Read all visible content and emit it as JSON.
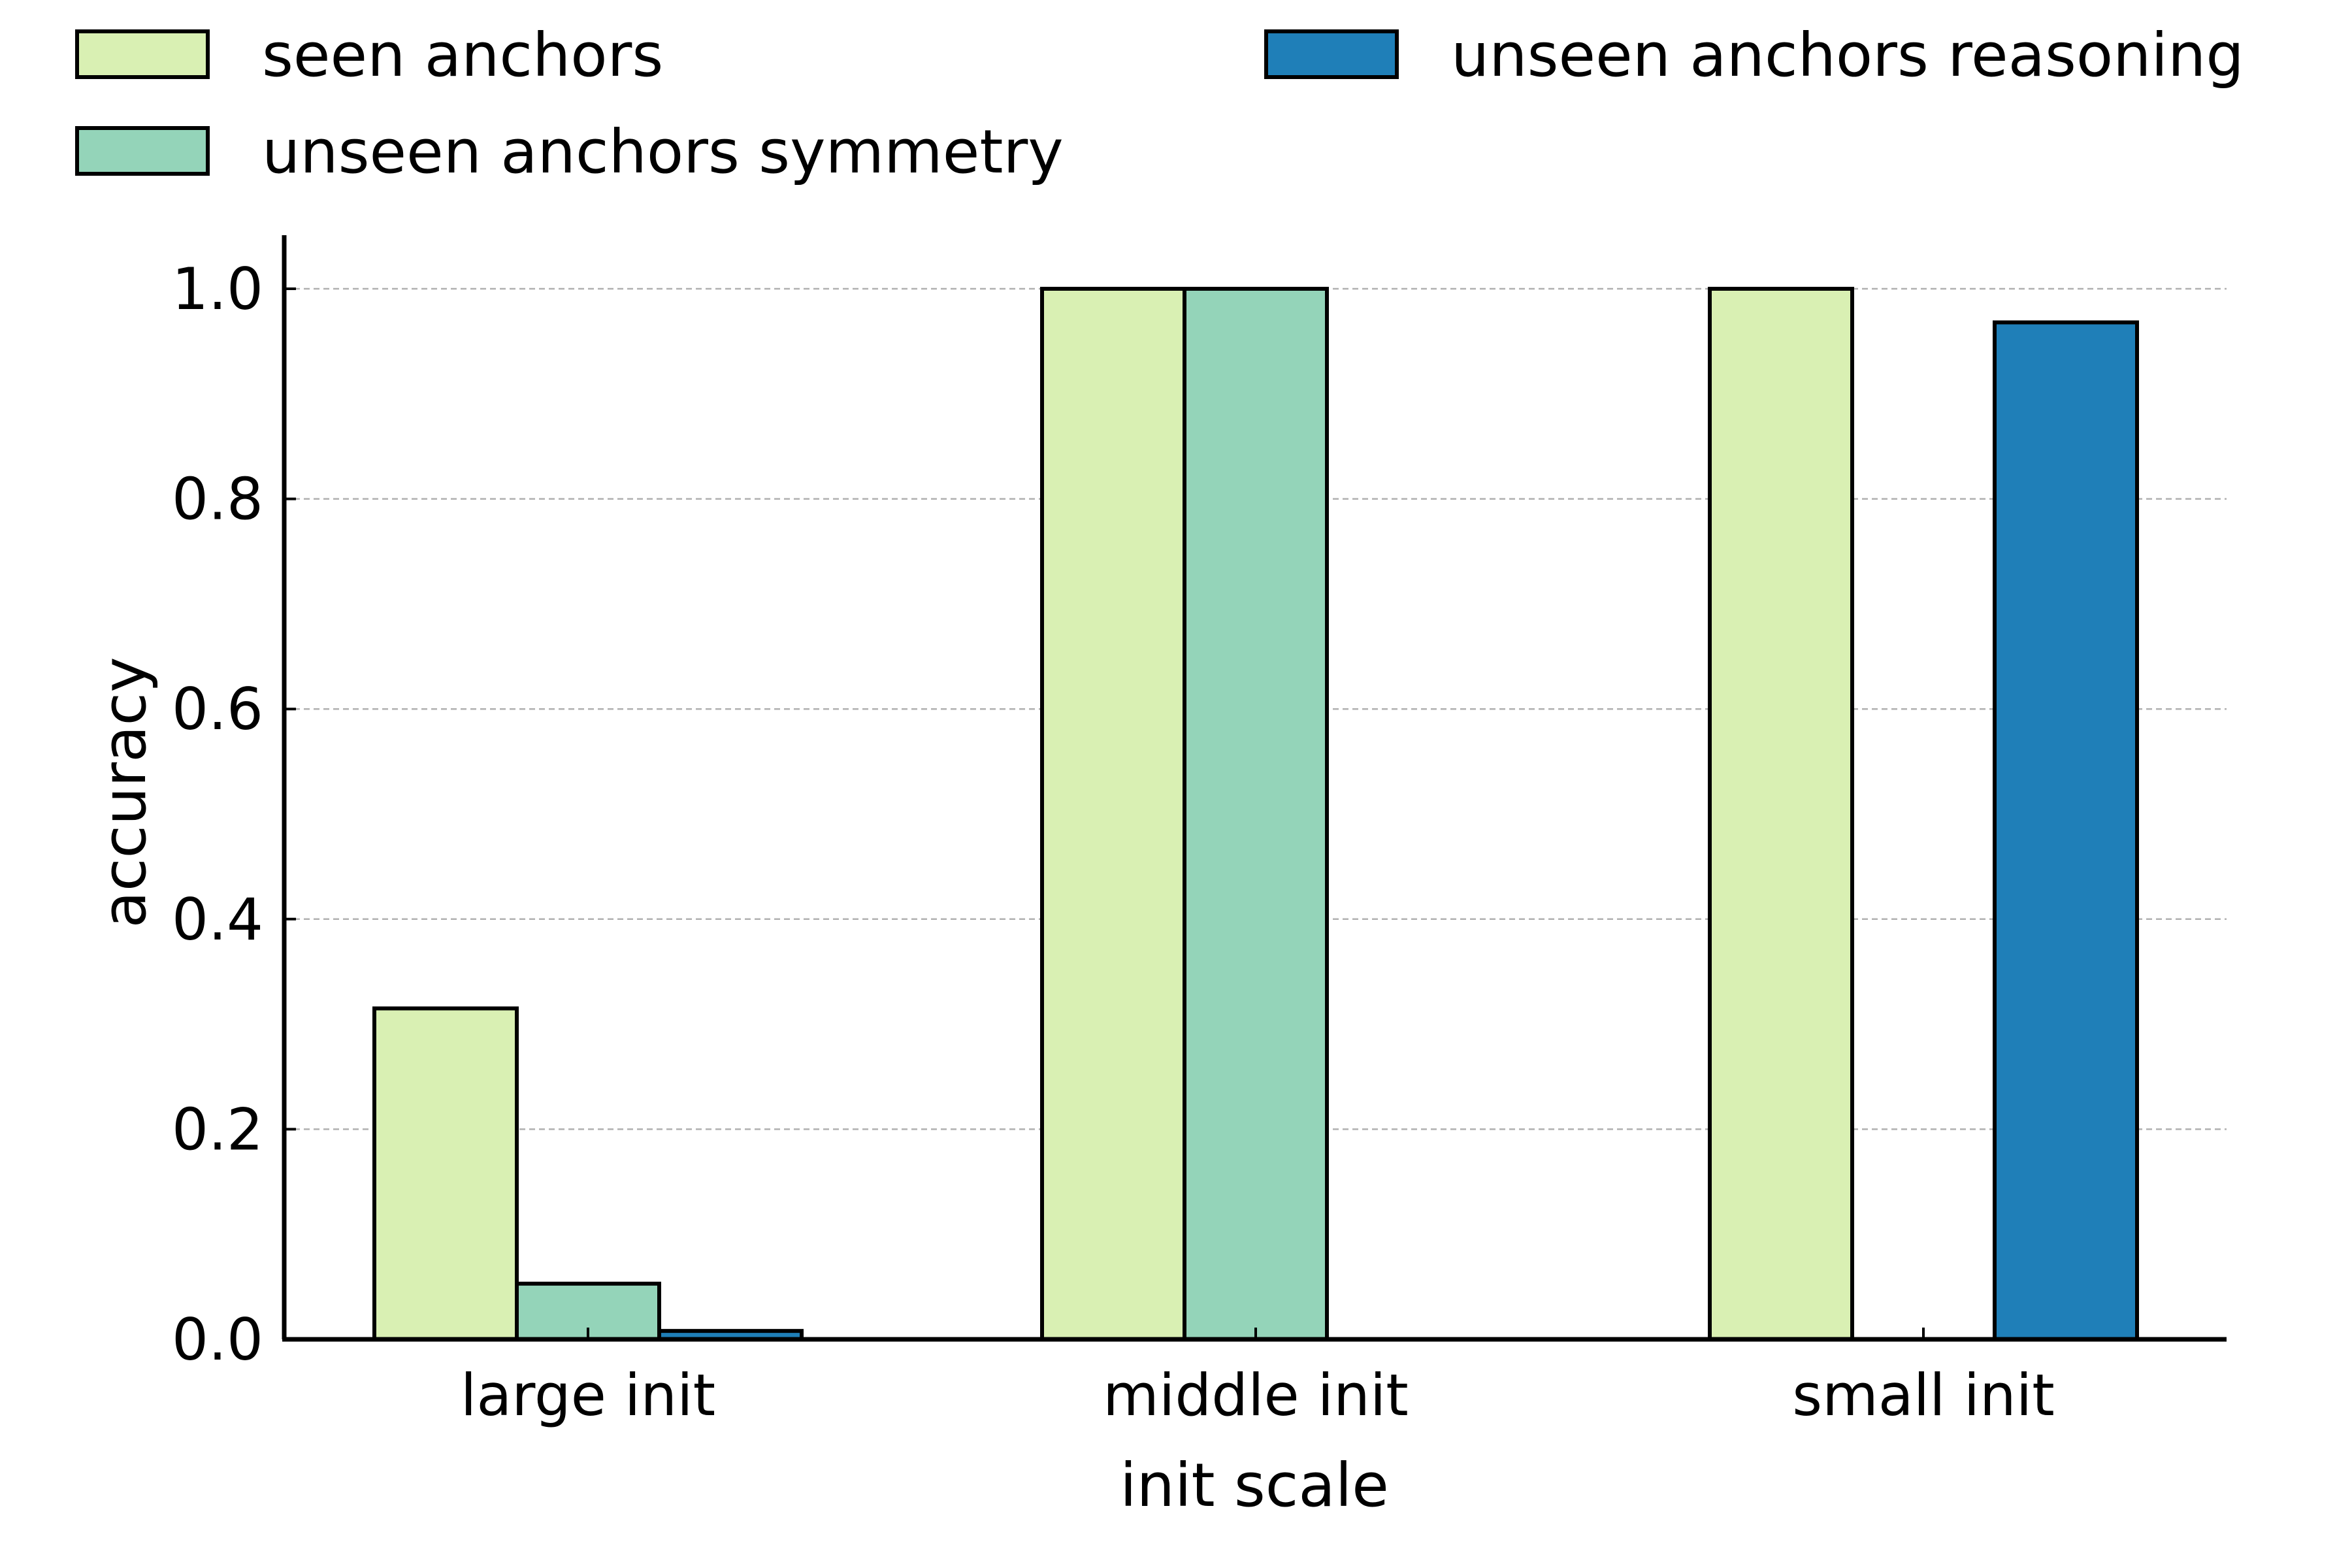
{
  "chart_data": {
    "type": "bar",
    "xlabel": "init scale",
    "ylabel": "accuracy",
    "categories": [
      "large init",
      "middle init",
      "small init"
    ],
    "series": [
      {
        "name": "seen anchors",
        "color": "#d9f0b3",
        "values": [
          0.315,
          1.0,
          1.0
        ]
      },
      {
        "name": "unseen anchors symmetry",
        "color": "#94d4b9",
        "values": [
          0.053,
          1.0,
          null
        ]
      },
      {
        "name": "unseen anchors reasoning",
        "color": "#1f7fb8",
        "values": [
          0.008,
          null,
          0.968
        ]
      }
    ],
    "ylim": [
      0,
      1.05
    ],
    "yticks": [
      0.0,
      0.2,
      0.4,
      0.6,
      0.8,
      1.0
    ],
    "ytick_labels": [
      "0.0",
      "0.2",
      "0.4",
      "0.6",
      "0.8",
      "1.0"
    ],
    "grid": "horizontal dashed",
    "legend_position": "top"
  }
}
